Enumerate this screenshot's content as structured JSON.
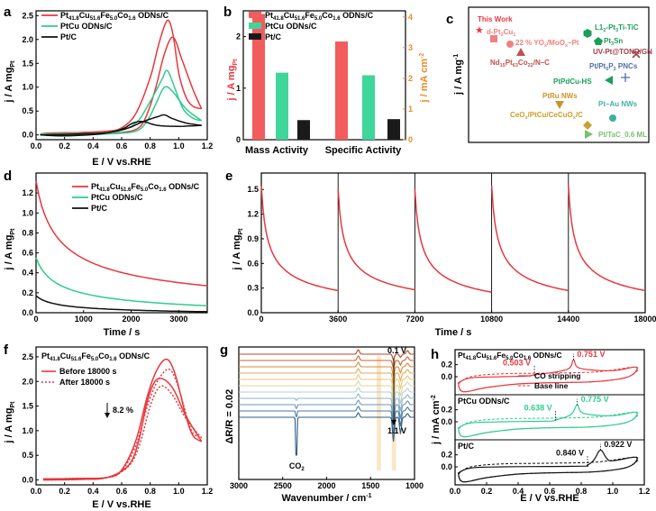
{
  "colors": {
    "red": "#e8373d",
    "green": "#2ecc8e",
    "black": "#111111",
    "orange": "#f08a24",
    "salmon": "#f4a582",
    "gray": "#888888"
  },
  "chart_data": [
    {
      "id": "a",
      "type": "line",
      "panel": "a",
      "xlabel": "E / V vs.RHE",
      "ylabel": "j / A mg",
      "ylabel_sub": "Pt",
      "xlim": [
        0,
        1.2
      ],
      "ylim": [
        -0.1,
        2.6
      ],
      "xticks": [
        "0.0",
        "0.2",
        "0.4",
        "0.6",
        "0.8",
        "1.0",
        "1.2"
      ],
      "yticks": [
        "0.0",
        "0.5",
        "1.0",
        "1.5",
        "2.0",
        "2.5"
      ],
      "legend": [
        "Pt",
        "41.8",
        "Cu",
        "51.6",
        "Fe",
        "5.0",
        "Co",
        "1.6",
        " ODNs/C",
        "PtCu ODNs/C",
        "Pt/C"
      ],
      "series": [
        {
          "name": "PtCuFeCo ODNs/C",
          "color": "red",
          "fwd": [
            [
              0.03,
              0.02
            ],
            [
              0.1,
              0.04
            ],
            [
              0.3,
              0.05
            ],
            [
              0.5,
              0.08
            ],
            [
              0.6,
              0.15
            ],
            [
              0.7,
              0.45
            ],
            [
              0.8,
              1.2
            ],
            [
              0.86,
              1.9
            ],
            [
              0.92,
              2.4
            ],
            [
              0.96,
              2.1
            ],
            [
              1.0,
              1.3
            ],
            [
              1.05,
              0.8
            ],
            [
              1.1,
              0.6
            ],
            [
              1.16,
              0.55
            ]
          ],
          "bwd": [
            [
              1.16,
              0.55
            ],
            [
              1.1,
              0.95
            ],
            [
              1.02,
              1.6
            ],
            [
              0.96,
              2.05
            ],
            [
              0.9,
              1.7
            ],
            [
              0.84,
              1.0
            ],
            [
              0.78,
              0.45
            ],
            [
              0.72,
              0.15
            ],
            [
              0.6,
              0.05
            ],
            [
              0.4,
              0.03
            ],
            [
              0.2,
              0.01
            ],
            [
              0.05,
              0.0
            ],
            [
              0.03,
              0.02
            ]
          ]
        },
        {
          "name": "PtCu ODNs/C",
          "color": "green",
          "fwd": [
            [
              0.03,
              0.02
            ],
            [
              0.3,
              0.03
            ],
            [
              0.55,
              0.06
            ],
            [
              0.7,
              0.25
            ],
            [
              0.8,
              0.7
            ],
            [
              0.88,
              1.15
            ],
            [
              0.92,
              1.35
            ],
            [
              0.97,
              1.0
            ],
            [
              1.03,
              0.55
            ],
            [
              1.1,
              0.35
            ],
            [
              1.16,
              0.3
            ]
          ],
          "bwd": [
            [
              1.16,
              0.3
            ],
            [
              1.05,
              0.55
            ],
            [
              0.96,
              0.9
            ],
            [
              0.9,
              1.0
            ],
            [
              0.84,
              0.65
            ],
            [
              0.78,
              0.3
            ],
            [
              0.7,
              0.08
            ],
            [
              0.5,
              0.02
            ],
            [
              0.2,
              0.0
            ],
            [
              0.03,
              0.02
            ]
          ]
        },
        {
          "name": "Pt/C",
          "color": "black",
          "fwd": [
            [
              0.03,
              0.0
            ],
            [
              0.3,
              0.02
            ],
            [
              0.5,
              0.05
            ],
            [
              0.65,
              0.15
            ],
            [
              0.75,
              0.28
            ],
            [
              0.85,
              0.38
            ],
            [
              0.9,
              0.42
            ],
            [
              0.95,
              0.35
            ],
            [
              1.05,
              0.25
            ],
            [
              1.16,
              0.2
            ]
          ],
          "bwd": [
            [
              1.16,
              0.2
            ],
            [
              1.0,
              0.18
            ],
            [
              0.85,
              0.2
            ],
            [
              0.75,
              0.28
            ],
            [
              0.68,
              0.25
            ],
            [
              0.6,
              0.12
            ],
            [
              0.45,
              0.02
            ],
            [
              0.2,
              -0.02
            ],
            [
              0.03,
              0.0
            ]
          ]
        }
      ]
    },
    {
      "id": "b",
      "type": "bar",
      "panel": "b",
      "categories": [
        "Mass Activity",
        "Specific Activity"
      ],
      "ylabel_left": "j / A mg",
      "ylabel_left_sub": "Pt",
      "ylabel_right": "j / mA cm",
      "ylabel_right_sup": "-2",
      "ylim_left": [
        0,
        2.5
      ],
      "ylim_right": [
        0,
        4.2
      ],
      "yticks_left": [
        "0",
        "1",
        "2"
      ],
      "yticks_right": [
        "0",
        "1",
        "2",
        "3",
        "4"
      ],
      "series": [
        {
          "name": "Pt41.8Cu51.6Fe5.0Co1.6 ODNs/C",
          "color": "red",
          "values": [
            2.44,
            3.2
          ]
        },
        {
          "name": "PtCu ODNs/C",
          "color": "green",
          "values": [
            1.3,
            2.1
          ]
        },
        {
          "name": "Pt/C",
          "color": "black",
          "values": [
            0.38,
            0.67
          ]
        }
      ],
      "legend": [
        "Pt",
        "41.8",
        "Cu",
        "51.6",
        "Fe",
        "5.0",
        "Co",
        "1.6",
        " ODNs/C",
        "PtCu  ODNs/C",
        "Pt/C"
      ]
    },
    {
      "id": "c",
      "type": "scatter",
      "panel": "c",
      "ylabel": "j / A mg",
      "ylabel_sup": "-1",
      "points": [
        {
          "label": "This Work",
          "color": "#e8373d",
          "marker": "star"
        },
        {
          "label": "d-Pt",
          "sub": "2",
          "label2": "Cu",
          "sub2": "1",
          "color": "#f08080",
          "marker": "square"
        },
        {
          "label": "22 % YO",
          "sub": "x",
          "label2": "/MoO",
          "sub2": "x",
          "label3": "–Pt",
          "color": "#f08080",
          "marker": "circle"
        },
        {
          "label": "Nd",
          "sub": "15",
          "label2": "Pt",
          "sub2": "63",
          "label3": "Co",
          "sub3": "22",
          "label4": "/N–C",
          "color": "#c0504d",
          "marker": "triangle"
        },
        {
          "label": "L1",
          "sub": "2",
          "label2": "-Pt",
          "sub2": "3",
          "label3": "Ti-TiC",
          "color": "#1a9e5a",
          "marker": "hexagon"
        },
        {
          "label": "Pt",
          "sub": "3",
          "label2": "Sn",
          "color": "#1a9e5a",
          "marker": "pentagon"
        },
        {
          "label": "UV-Pt@TONR/GN",
          "color": "#a23e48",
          "marker": "x"
        },
        {
          "label": "Pt/Pt",
          "sub": "5",
          "label2": "P",
          "sub2": "2",
          "label3": " PNCs",
          "color": "#4f6fa8",
          "marker": "plus"
        },
        {
          "label": "PtPdCu-HS",
          "color": "#1a9e5a",
          "marker": "triangle-left"
        },
        {
          "label": "PtRu NWs",
          "color": "#c8952a",
          "marker": "triangle-down"
        },
        {
          "label": "Pt–Au NWs",
          "color": "#3fb0a0",
          "marker": "circle"
        },
        {
          "label": "CeO",
          "sub": "x",
          "label2": "/PtCu/CeCuO",
          "sub2": "x",
          "label3": "/C",
          "color": "#c8a02a",
          "marker": "diamond"
        },
        {
          "label": "Pt/TaC_0.6 ML",
          "color": "#7ac070",
          "marker": "triangle-right"
        }
      ]
    },
    {
      "id": "d",
      "type": "line",
      "panel": "d",
      "xlabel": "Time / s",
      "ylabel": "j / A mg",
      "ylabel_sub": "Pt",
      "xlim": [
        0,
        3600
      ],
      "ylim": [
        0,
        1.4
      ],
      "xticks": [
        "0",
        "1000",
        "2000",
        "3000"
      ],
      "yticks": [
        "0.0",
        "0.2",
        "0.4",
        "0.6",
        "0.8",
        "1.0",
        "1.2"
      ],
      "legend": [
        "Pt",
        "41.8",
        "Cu",
        "51.6",
        "Fe",
        "5.0",
        "Co",
        "1.6",
        " ODNs/C",
        "PtCu ODNs/C",
        "Pt/C"
      ],
      "series": [
        {
          "name": "PtCuFeCo",
          "color": "red",
          "start": 1.32,
          "end": 0.27,
          "k": 1.4
        },
        {
          "name": "PtCu",
          "color": "green",
          "start": 0.55,
          "end": 0.07,
          "k": 1.8
        },
        {
          "name": "Pt/C",
          "color": "black",
          "start": 0.17,
          "end": 0.01,
          "k": 2.5
        }
      ]
    },
    {
      "id": "e",
      "type": "line",
      "panel": "e",
      "xlabel": "Time / s",
      "ylabel": "j / A mg",
      "ylabel_sub": "Pt",
      "xlim": [
        0,
        18000
      ],
      "ylim": [
        0,
        1.7
      ],
      "xticks": [
        "0",
        "3600",
        "7200",
        "10800",
        "14400",
        "18000"
      ],
      "yticks": [
        "0.0",
        "0.3",
        "0.6",
        "0.9",
        "1.2",
        "1.5"
      ],
      "segments": [
        {
          "start": 1.55,
          "end": 0.27
        },
        {
          "start": 1.5,
          "end": 0.28
        },
        {
          "start": 1.5,
          "end": 0.25
        },
        {
          "start": 1.55,
          "end": 0.27
        },
        {
          "start": 1.55,
          "end": 0.27
        }
      ],
      "color": "red"
    },
    {
      "id": "f",
      "type": "line",
      "panel": "f",
      "xlabel": "E / V vs.RHE",
      "ylabel": "j / A mg",
      "ylabel_sub": "Pt",
      "xlim": [
        0,
        1.2
      ],
      "ylim": [
        -0.1,
        2.7
      ],
      "title_parts": [
        "Pt",
        "41.8",
        "Cu",
        "51.6",
        "Fe",
        "5.0",
        "Co",
        "1.6",
        " ODNs/C"
      ],
      "xticks": [
        "0.0",
        "0.2",
        "0.4",
        "0.6",
        "0.8",
        "1.0",
        "1.2"
      ],
      "yticks": [
        "0.0",
        "0.5",
        "1.0",
        "1.5",
        "2.0",
        "2.5"
      ],
      "legend": [
        "Before 18000 s",
        "After 18000 s"
      ],
      "annotation": "8.2 %",
      "series": [
        {
          "name": "Before 18000 s",
          "dash": false,
          "fwd": [
            [
              0.05,
              0.02
            ],
            [
              0.3,
              0.03
            ],
            [
              0.5,
              0.05
            ],
            [
              0.6,
              0.2
            ],
            [
              0.7,
              0.8
            ],
            [
              0.78,
              1.7
            ],
            [
              0.85,
              2.25
            ],
            [
              0.92,
              2.45
            ],
            [
              0.98,
              2.1
            ],
            [
              1.05,
              1.3
            ],
            [
              1.1,
              0.9
            ],
            [
              1.16,
              0.78
            ]
          ],
          "bwd": [
            [
              1.16,
              0.78
            ],
            [
              1.05,
              1.3
            ],
            [
              0.95,
              1.9
            ],
            [
              0.85,
              2.05
            ],
            [
              0.78,
              1.6
            ],
            [
              0.72,
              0.8
            ],
            [
              0.65,
              0.3
            ],
            [
              0.5,
              0.05
            ],
            [
              0.3,
              0.01
            ],
            [
              0.05,
              0.0
            ]
          ]
        },
        {
          "name": "After 18000 s",
          "dash": true,
          "fwd": [
            [
              0.05,
              0.02
            ],
            [
              0.3,
              0.03
            ],
            [
              0.5,
              0.05
            ],
            [
              0.6,
              0.18
            ],
            [
              0.7,
              0.7
            ],
            [
              0.78,
              1.5
            ],
            [
              0.85,
              2.0
            ],
            [
              0.93,
              2.25
            ],
            [
              0.99,
              1.95
            ],
            [
              1.06,
              1.25
            ],
            [
              1.1,
              0.95
            ],
            [
              1.16,
              0.85
            ]
          ],
          "bwd": [
            [
              1.16,
              0.85
            ],
            [
              1.05,
              1.25
            ],
            [
              0.95,
              1.75
            ],
            [
              0.87,
              1.9
            ],
            [
              0.8,
              1.5
            ],
            [
              0.73,
              0.75
            ],
            [
              0.65,
              0.28
            ],
            [
              0.5,
              0.05
            ],
            [
              0.3,
              0.01
            ],
            [
              0.05,
              0.0
            ]
          ]
        }
      ]
    },
    {
      "id": "g",
      "type": "line",
      "panel": "g",
      "xlabel": "Wavenumber / cm",
      "xlabel_sup": "-1",
      "ylabel": "ΔR/R = 0.02",
      "xlim": [
        3000,
        1000
      ],
      "xticks": [
        "3000",
        "2500",
        "2000",
        "1500",
        "1000"
      ],
      "label_top": "0.1 V",
      "label_bottom": "1.1 V",
      "co2": "CO",
      "co2_sub": "2",
      "spectra_colors": [
        "#b5432c",
        "#c96330",
        "#d78a3e",
        "#e2ab56",
        "#e9c67a",
        "#dfd49a",
        "#b7cfc8",
        "#8fb5c8",
        "#6d96b8",
        "#4c789f",
        "#2f5a80"
      ]
    },
    {
      "id": "h",
      "type": "line",
      "panel": "h",
      "xlabel": "E / V vs.RHE",
      "ylabel": "j / mA cm",
      "ylabel_sup": "-2",
      "xlim": [
        0,
        1.2
      ],
      "xticks": [
        "0.0",
        "0.2",
        "0.4",
        "0.6",
        "0.8",
        "1.0",
        "1.2"
      ],
      "subpanels": [
        {
          "title_parts": [
            "Pt",
            "41.8",
            "Cu",
            "51.6",
            "Fe",
            "5.0",
            "Co",
            "1.6",
            " ODNs/C"
          ],
          "color": "red",
          "onset": "0.503 V",
          "peak": "0.751 V",
          "yticks": [
            "0.0",
            "0.2"
          ],
          "legend": [
            "CO stripping",
            "Base line"
          ]
        },
        {
          "title": "PtCu ODNs/C",
          "color": "green",
          "onset": "0.638 V",
          "peak": "0.775 V",
          "yticks": [
            "0.0",
            "0.2"
          ]
        },
        {
          "title": "Pt/C",
          "color": "black",
          "onset": "0.840 V",
          "peak": "0.922 V",
          "yticks": [
            "0.0",
            "0.2"
          ]
        }
      ]
    }
  ],
  "panel_labels": [
    "a",
    "b",
    "c",
    "d",
    "e",
    "f",
    "g",
    "h"
  ]
}
